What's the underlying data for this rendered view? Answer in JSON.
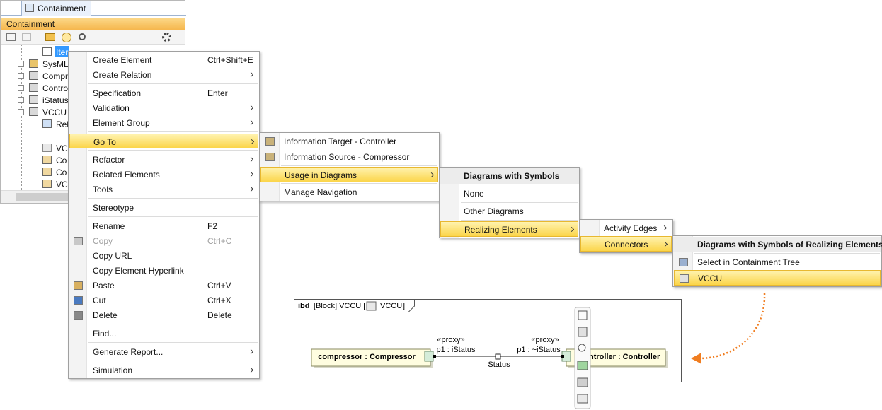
{
  "containment": {
    "tab": "Containment",
    "title": "Containment",
    "tree": [
      "Iter",
      "SysML",
      "Compr",
      "Contro",
      "iStatus",
      "VCCU",
      "Rela",
      "VC",
      "Co",
      "Co",
      "VC"
    ]
  },
  "context_menu": {
    "groups": [
      [
        {
          "label": "Create Element",
          "shortcut": "Ctrl+Shift+E"
        },
        {
          "label": "Create Relation",
          "submenu": true
        }
      ],
      [
        {
          "label": "Specification",
          "shortcut": "Enter"
        },
        {
          "label": "Validation",
          "submenu": true
        },
        {
          "label": "Element Group",
          "submenu": true
        }
      ],
      [
        {
          "label": "Go To",
          "submenu": true,
          "highlighted": true
        }
      ],
      [
        {
          "label": "Refactor",
          "submenu": true
        },
        {
          "label": "Related Elements",
          "submenu": true
        },
        {
          "label": "Tools",
          "submenu": true
        }
      ],
      [
        {
          "label": "Stereotype"
        }
      ],
      [
        {
          "label": "Rename",
          "shortcut": "F2"
        },
        {
          "label": "Copy",
          "shortcut": "Ctrl+C",
          "disabled": true
        },
        {
          "label": "Copy URL"
        },
        {
          "label": "Copy Element Hyperlink"
        },
        {
          "label": "Paste",
          "shortcut": "Ctrl+V"
        },
        {
          "label": "Cut",
          "shortcut": "Ctrl+X"
        },
        {
          "label": "Delete",
          "shortcut": "Delete"
        }
      ],
      [
        {
          "label": "Find..."
        }
      ],
      [
        {
          "label": "Generate Report...",
          "submenu": true
        }
      ],
      [
        {
          "label": "Simulation",
          "submenu": true
        }
      ]
    ]
  },
  "submenus": [
    {
      "groups": [
        [
          {
            "label": "Information Target - Controller"
          },
          {
            "label": "Information Source - Compressor"
          }
        ],
        [
          {
            "label": "Usage in Diagrams",
            "submenu": true,
            "highlighted": true
          }
        ],
        [
          {
            "label": "Manage Navigation"
          }
        ]
      ]
    },
    {
      "header": "Diagrams with Symbols",
      "groups": [
        [
          {
            "label": "None"
          }
        ],
        [
          {
            "label": "Other Diagrams"
          }
        ],
        [
          {
            "label": "Realizing Elements",
            "submenu": true,
            "highlighted": true
          }
        ]
      ]
    },
    {
      "groups": [
        [
          {
            "label": "Activity Edges",
            "submenu": true
          },
          {
            "label": "Connectors",
            "submenu": true,
            "highlighted": true
          }
        ]
      ]
    },
    {
      "header": "Diagrams with Symbols of Realizing Elements",
      "groups": [
        [
          {
            "label": "Select in Containment Tree"
          },
          {
            "label": "VCCU",
            "highlighted": true
          }
        ]
      ]
    }
  ],
  "diagram": {
    "kind": "ibd",
    "context": "[Block] VCCU [",
    "name": "VCCU",
    "close": "]",
    "parts": [
      "compressor : Compressor",
      "ntroller : Controller"
    ],
    "ports": [
      {
        "stereotype": "«proxy»",
        "label": "p1 : iStatus"
      },
      {
        "stereotype": "«proxy»",
        "label": "p1 : ~iStatus"
      }
    ],
    "connector": "Status"
  }
}
